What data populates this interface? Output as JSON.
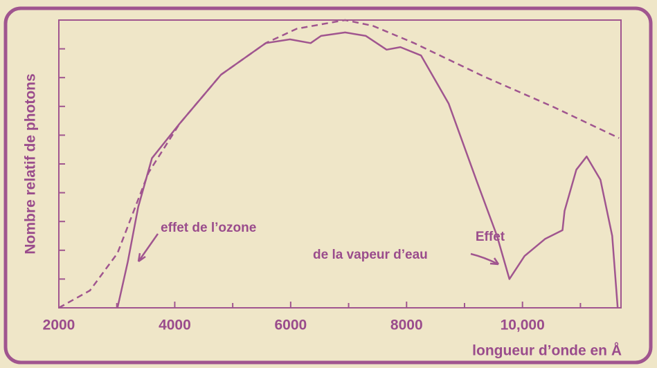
{
  "chart_data": {
    "type": "line",
    "xlabel": "Nombre relatif de photons",
    "x_axis_label": "longueur d’onde en Å",
    "xlim": [
      2000,
      11700
    ],
    "ylim": [
      0,
      10
    ],
    "xticks": [
      2000,
      4000,
      6000,
      8000,
      {
        "value": 10000,
        "label": "10,000"
      }
    ],
    "xminor": [
      3000,
      5000,
      7000,
      9000,
      11000
    ],
    "yticks": [
      1,
      2,
      3,
      4,
      5,
      6,
      7,
      8,
      9
    ],
    "color": "#a0558f",
    "series": [
      {
        "style": "dashed",
        "x": [
          2000,
          2536,
          3012,
          3548,
          4083,
          4798,
          5571,
          6107,
          6940,
          7417,
          8131,
          9321,
          10512,
          11667
        ],
        "values": [
          0,
          0.6,
          1.9,
          4.7,
          6.4,
          8.1,
          9.2,
          9.7,
          10.0,
          9.8,
          9.2,
          8.05,
          7.0,
          5.9
        ]
      },
      {
        "style": "solid",
        "x": [
          3012,
          3190,
          3369,
          3607,
          4083,
          4798,
          5571,
          5988,
          6345,
          6524,
          6940,
          7298,
          7655,
          7893,
          8250,
          8726,
          9202,
          9560,
          9774,
          10036,
          10393,
          10690,
          10726,
          10929,
          11107,
          11345,
          11548,
          11643
        ],
        "values": [
          0,
          1.6,
          3.5,
          5.2,
          6.4,
          8.1,
          9.2,
          9.33,
          9.2,
          9.45,
          9.57,
          9.45,
          8.97,
          9.06,
          8.77,
          7.1,
          4.45,
          2.5,
          1.0,
          1.8,
          2.4,
          2.7,
          3.37,
          4.8,
          5.26,
          4.45,
          2.5,
          0
        ]
      }
    ],
    "annotations": [
      "effet de l’ozone",
      "Effet",
      "de la vapeur d’eau"
    ]
  }
}
